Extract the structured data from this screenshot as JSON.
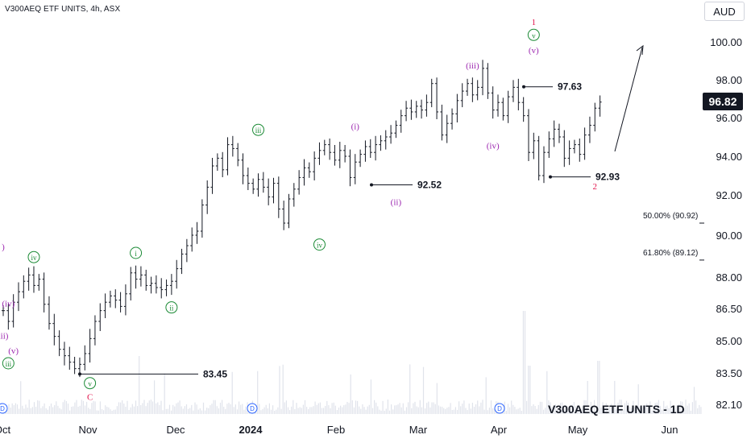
{
  "chart_data": {
    "type": "bar",
    "title": "V300AEQ ETF UNITS, 4h, ASX",
    "currency": "AUD",
    "last_price": "96.82",
    "watermark": "V300AEQ ETF UNITS - 1D",
    "y_axis": {
      "ticks": [
        "100.00",
        "98.00",
        "96.00",
        "94.00",
        "92.00",
        "90.00",
        "88.00",
        "86.50",
        "85.00",
        "83.50",
        "82.10"
      ]
    },
    "x_axis": {
      "ticks": [
        "Oct",
        "Nov",
        "Dec",
        "2024",
        "Feb",
        "Mar",
        "Apr",
        "May",
        "Jun"
      ]
    },
    "series": [
      {
        "name": "",
        "points": [
          [
            0,
            86.4
          ],
          [
            1,
            85.9
          ],
          [
            2,
            86.8
          ],
          [
            3,
            87.3
          ],
          [
            4,
            87.8
          ],
          [
            5,
            88.1
          ],
          [
            6,
            87.6
          ],
          [
            7,
            87.9
          ],
          [
            8,
            86.7
          ],
          [
            9,
            85.8
          ],
          [
            10,
            85.2
          ],
          [
            11,
            84.6
          ],
          [
            12,
            84.3
          ],
          [
            13,
            84.0
          ],
          [
            14,
            83.7
          ],
          [
            15,
            83.9
          ],
          [
            16,
            84.4
          ],
          [
            17,
            85.1
          ],
          [
            18,
            85.9
          ],
          [
            19,
            86.4
          ],
          [
            20,
            86.8
          ],
          [
            21,
            87.1
          ],
          [
            22,
            86.9
          ],
          [
            23,
            86.6
          ],
          [
            24,
            87.2
          ],
          [
            25,
            88.2
          ],
          [
            26,
            87.9
          ],
          [
            27,
            88.1
          ],
          [
            28,
            87.6
          ],
          [
            29,
            87.7
          ],
          [
            30,
            87.5
          ],
          [
            31,
            87.4
          ],
          [
            32,
            87.6
          ],
          [
            33,
            87.8
          ],
          [
            34,
            88.4
          ],
          [
            35,
            89.1
          ],
          [
            36,
            89.5
          ],
          [
            37,
            90.0
          ],
          [
            38,
            90.2
          ],
          [
            39,
            91.5
          ],
          [
            40,
            92.4
          ],
          [
            41,
            93.5
          ],
          [
            42,
            93.9
          ],
          [
            43,
            93.3
          ],
          [
            44,
            94.6
          ],
          [
            45,
            94.4
          ],
          [
            46,
            93.8
          ],
          [
            47,
            93.0
          ],
          [
            48,
            92.6
          ],
          [
            49,
            92.3
          ],
          [
            50,
            92.8
          ],
          [
            51,
            92.4
          ],
          [
            52,
            91.9
          ],
          [
            53,
            92.6
          ],
          [
            54,
            91.3
          ],
          [
            55,
            90.6
          ],
          [
            56,
            91.8
          ],
          [
            57,
            92.3
          ],
          [
            58,
            92.9
          ],
          [
            59,
            93.4
          ],
          [
            60,
            93.2
          ],
          [
            61,
            93.9
          ],
          [
            62,
            94.3
          ],
          [
            63,
            94.6
          ],
          [
            64,
            94.2
          ],
          [
            65,
            93.8
          ],
          [
            66,
            94.3
          ],
          [
            67,
            94.0
          ],
          [
            68,
            92.9
          ],
          [
            69,
            93.7
          ],
          [
            70,
            94.1
          ],
          [
            71,
            94.5
          ],
          [
            72,
            94.2
          ],
          [
            73,
            94.6
          ],
          [
            74,
            94.8
          ],
          [
            75,
            95.0
          ],
          [
            76,
            95.2
          ],
          [
            77,
            95.6
          ],
          [
            78,
            96.1
          ],
          [
            79,
            96.5
          ],
          [
            80,
            96.3
          ],
          [
            81,
            96.6
          ],
          [
            82,
            96.4
          ],
          [
            83,
            96.8
          ],
          [
            84,
            97.8
          ],
          [
            85,
            96.3
          ],
          [
            86,
            95.1
          ],
          [
            87,
            95.7
          ],
          [
            88,
            96.2
          ],
          [
            89,
            96.9
          ],
          [
            90,
            97.4
          ],
          [
            91,
            97.8
          ],
          [
            92,
            97.2
          ],
          [
            93,
            97.6
          ],
          [
            94,
            98.6
          ],
          [
            95,
            97.3
          ],
          [
            96,
            96.4
          ],
          [
            97,
            96.8
          ],
          [
            98,
            96.1
          ],
          [
            99,
            97.1
          ],
          [
            100,
            97.6
          ],
          [
            101,
            96.8
          ],
          [
            102,
            96.1
          ],
          [
            103,
            94.2
          ],
          [
            104,
            94.8
          ],
          [
            105,
            93.0
          ],
          [
            106,
            94.2
          ],
          [
            107,
            94.9
          ],
          [
            108,
            95.4
          ],
          [
            109,
            95.0
          ],
          [
            110,
            93.9
          ],
          [
            111,
            94.4
          ],
          [
            112,
            94.6
          ],
          [
            113,
            94.1
          ],
          [
            114,
            95.1
          ],
          [
            115,
            95.6
          ],
          [
            116,
            96.5
          ],
          [
            117,
            96.82
          ]
        ]
      }
    ],
    "wave_labels": [
      {
        "text": "1",
        "x": 104,
        "y": 100.9,
        "color": "#e2174e"
      },
      {
        "text": "v",
        "x": 104,
        "y": 100.2,
        "color": "#1b8a35",
        "circled": true
      },
      {
        "text": "(v)",
        "x": 104,
        "y": 99.4,
        "color": "#9c27b0"
      },
      {
        "text": "(iii)",
        "x": 92,
        "y": 98.6,
        "color": "#9c27b0"
      },
      {
        "text": "(iv)",
        "x": 96,
        "y": 94.4,
        "color": "#9c27b0"
      },
      {
        "text": "(i)",
        "x": 69,
        "y": 95.4,
        "color": "#9c27b0"
      },
      {
        "text": "(ii)",
        "x": 77,
        "y": 91.5,
        "color": "#9c27b0"
      },
      {
        "text": "iii",
        "x": 50,
        "y": 95.2,
        "color": "#1b8a35",
        "circled": true
      },
      {
        "text": "iv",
        "x": 62,
        "y": 89.4,
        "color": "#1b8a35",
        "circled": true
      },
      {
        "text": "i",
        "x": 26,
        "y": 89.0,
        "color": "#1b8a35",
        "circled": true
      },
      {
        "text": "ii",
        "x": 33,
        "y": 86.4,
        "color": "#1b8a35",
        "circled": true
      },
      {
        "text": "v",
        "x": 17,
        "y": 82.9,
        "color": "#1b8a35",
        "circled": true
      },
      {
        "text": "C",
        "x": 17,
        "y": 82.3,
        "color": "#e2174e"
      },
      {
        "text": "2",
        "x": 116,
        "y": 92.3,
        "color": "#e2174e"
      },
      {
        "text": "iv",
        "x": 6,
        "y": 88.8,
        "color": "#1b8a35",
        "circled": true
      },
      {
        "text": "iii",
        "x": 1,
        "y": 83.8,
        "color": "#1b8a35",
        "circled": true
      },
      {
        "text": "(iv)",
        "x": 1,
        "y": 86.6,
        "color": "#9c27b0"
      },
      {
        "text": "(v)",
        "x": 2,
        "y": 84.4,
        "color": "#9c27b0"
      },
      {
        "text": "iii)",
        "x": 0,
        "y": 85.1,
        "color": "#9c27b0"
      },
      {
        "text": ")",
        "x": 0,
        "y": 89.3,
        "color": "#9c27b0"
      }
    ],
    "annotations": [
      {
        "text": "83.45",
        "price": 83.45
      },
      {
        "text": "92.52",
        "price": 92.52
      },
      {
        "text": "97.63",
        "price": 97.63
      },
      {
        "text": "92.93",
        "price": 92.93
      }
    ],
    "fib_levels": [
      {
        "text": "50.00% (90.92)",
        "price": 90.92
      },
      {
        "text": "61.80% (89.12)",
        "price": 89.12
      }
    ],
    "dividend_marker": "D",
    "colors": {
      "bars": "#131722",
      "red": "#e2174e",
      "green": "#1b8a35",
      "purple": "#9c27b0",
      "volume": "#e0e3eb",
      "axis_text": "#131722"
    }
  }
}
